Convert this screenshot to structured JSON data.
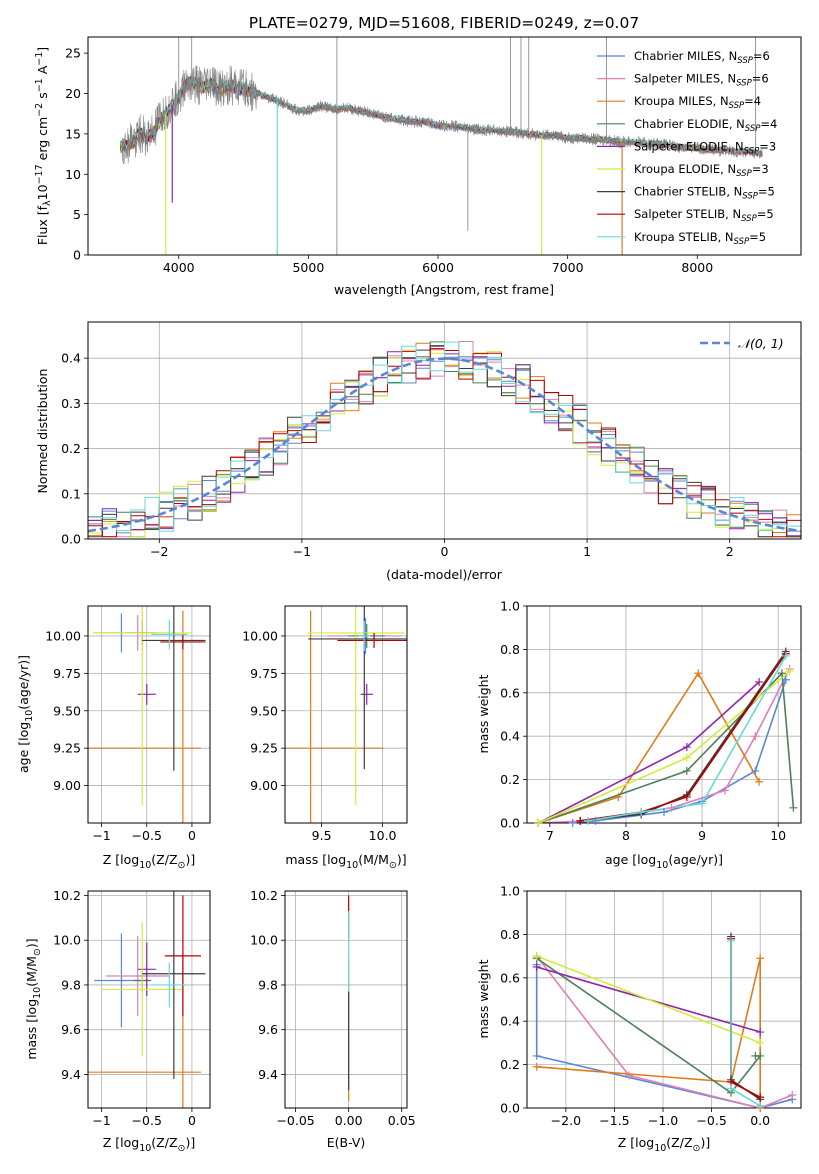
{
  "figure": {
    "title": "PLATE=0279, MJD=51608, FIBERID=0249, z=0.07"
  },
  "models": [
    {
      "name": "Chabrier MILES",
      "nssp": "6",
      "color": "#5a86d6"
    },
    {
      "name": "Salpeter MILES",
      "nssp": "6",
      "color": "#e07fb6"
    },
    {
      "name": "Kroupa MILES",
      "nssp": "4",
      "color": "#e07b1c"
    },
    {
      "name": "Chabrier ELODIE",
      "nssp": "4",
      "color": "#4e7f56"
    },
    {
      "name": "Salpeter ELODIE",
      "nssp": "3",
      "color": "#8e24aa"
    },
    {
      "name": "Kroupa ELODIE",
      "nssp": "3",
      "color": "#d2ec3d"
    },
    {
      "name": "Chabrier STELIB",
      "nssp": "5",
      "color": "#3d3d3d"
    },
    {
      "name": "Salpeter STELIB",
      "nssp": "5",
      "color": "#b30000"
    },
    {
      "name": "Kroupa STELIB",
      "nssp": "5",
      "color": "#6ad8d8"
    }
  ],
  "legend_nssp_label": "N",
  "legend_nssp_sub": "SSP",
  "chart_data": [
    {
      "id": "spectrum",
      "type": "line",
      "xlabel": "wavelength [Angstrom, rest frame]",
      "ylabel": "Flux [f",
      "ylabel_parts": [
        "Flux [f",
        "λ",
        "10",
        "−17",
        " erg cm",
        "−2",
        " s",
        "−1",
        " A",
        "−1",
        "]"
      ],
      "xlim": [
        3300,
        8800
      ],
      "ylim": [
        0,
        27
      ],
      "xticks": [
        4000,
        5000,
        6000,
        7000,
        8000
      ],
      "yticks": [
        0,
        5,
        10,
        15,
        20,
        25
      ],
      "data_color": "#808080",
      "data_points": [
        [
          3550,
          13.5
        ],
        [
          3600,
          13.8
        ],
        [
          3650,
          14.0
        ],
        [
          3700,
          15.2
        ],
        [
          3750,
          14.5
        ],
        [
          3800,
          15.0
        ],
        [
          3850,
          16.5
        ],
        [
          3900,
          17.5
        ],
        [
          3950,
          18.5
        ],
        [
          4000,
          19.5
        ],
        [
          4050,
          21.0
        ],
        [
          4100,
          21.5
        ],
        [
          4150,
          21.0
        ],
        [
          4200,
          20.8
        ],
        [
          4250,
          21.2
        ],
        [
          4300,
          20.5
        ],
        [
          4350,
          20.8
        ],
        [
          4400,
          21.0
        ],
        [
          4500,
          20.5
        ],
        [
          4600,
          20.0
        ],
        [
          4700,
          19.5
        ],
        [
          4800,
          18.8
        ],
        [
          4900,
          18.0
        ],
        [
          5000,
          17.8
        ],
        [
          5100,
          18.5
        ],
        [
          5200,
          18.0
        ],
        [
          5300,
          18.2
        ],
        [
          5400,
          17.8
        ],
        [
          5500,
          17.5
        ],
        [
          5600,
          17.0
        ],
        [
          5700,
          16.8
        ],
        [
          5800,
          16.5
        ],
        [
          5900,
          16.5
        ],
        [
          6000,
          16.0
        ],
        [
          6100,
          16.0
        ],
        [
          6200,
          15.8
        ],
        [
          6300,
          15.5
        ],
        [
          6400,
          15.5
        ],
        [
          6500,
          15.3
        ],
        [
          6600,
          15.2
        ],
        [
          6700,
          15.0
        ],
        [
          6800,
          14.8
        ],
        [
          6900,
          14.8
        ],
        [
          7000,
          14.5
        ],
        [
          7100,
          14.5
        ],
        [
          7200,
          14.3
        ],
        [
          7300,
          14.3
        ],
        [
          7400,
          14.0
        ],
        [
          7500,
          14.0
        ],
        [
          7600,
          13.8
        ],
        [
          7700,
          13.8
        ],
        [
          7800,
          13.5
        ],
        [
          7900,
          13.3
        ],
        [
          8000,
          13.3
        ],
        [
          8100,
          13.0
        ],
        [
          8200,
          13.0
        ],
        [
          8300,
          12.8
        ],
        [
          8400,
          12.8
        ],
        [
          8500,
          12.5
        ]
      ],
      "spikes": [
        [
          4000,
          27
        ],
        [
          4100,
          27
        ],
        [
          5220,
          0
        ],
        [
          5220,
          27
        ],
        [
          6230,
          3
        ],
        [
          6560,
          27
        ],
        [
          6640,
          27
        ],
        [
          6700,
          27
        ],
        [
          7300,
          27
        ],
        [
          8450,
          27
        ]
      ],
      "model_dips": [
        {
          "x": 3900,
          "model": 5,
          "y": 0
        },
        {
          "x": 3950,
          "model": 4,
          "y": 6.5
        },
        {
          "x": 4760,
          "model": 8,
          "y": 0
        },
        {
          "x": 6800,
          "model": 5,
          "y": 0
        },
        {
          "x": 7420,
          "model": 2,
          "y": 0
        }
      ]
    },
    {
      "id": "residuals",
      "type": "step",
      "xlabel": "(data-model)/error",
      "ylabel": "Normed distribution",
      "xlim": [
        -2.5,
        2.5
      ],
      "ylim": [
        0,
        0.48
      ],
      "xticks": [
        -2,
        -1,
        0,
        1,
        2
      ],
      "yticks": [
        0.0,
        0.1,
        0.2,
        0.3,
        0.4
      ],
      "grid": true,
      "legend_label": "𝒩(0, 1)",
      "legend_loc": "upper right",
      "normal_color": "#5a86d6",
      "bin_width": 0.1
    },
    {
      "id": "age_vs_Z",
      "type": "errorbar",
      "xlabel": "Z [log",
      "xlabel_parts": [
        "Z [log",
        "10",
        "(Z/Z",
        "⊙",
        ")]"
      ],
      "ylabel_parts": [
        "age  [log",
        "10",
        "(age/yr)]"
      ],
      "xlim": [
        -1.15,
        0.2
      ],
      "ylim": [
        8.75,
        10.2
      ],
      "xticks": [
        -1,
        -0.5,
        0
      ],
      "yticks": [
        9.0,
        9.25,
        9.5,
        9.75,
        10.0
      ],
      "grid": true,
      "points": [
        {
          "model": 0,
          "x": -0.78,
          "y": 10.02,
          "xerr": 0.3,
          "yerr": 0.13
        },
        {
          "model": 1,
          "x": -0.6,
          "y": 10.02,
          "xerr": 0.35,
          "yerr": 0.12
        },
        {
          "model": 2,
          "x": -0.6,
          "y": 9.25,
          "xerr": 0.7,
          "yerr": 0.0
        },
        {
          "model": 2,
          "x": -0.1,
          "y": 9.25,
          "xerr": 0.0,
          "yerr": 0.92
        },
        {
          "model": 3,
          "x": -0.55,
          "y": 10.02,
          "xerr": 0.15,
          "yerr": 0.08
        },
        {
          "model": 4,
          "x": -0.5,
          "y": 9.61,
          "xerr": 0.1,
          "yerr": 0.07
        },
        {
          "model": 5,
          "x": -0.55,
          "y": 10.02,
          "xerr": 0.55,
          "yerr": 1.15
        },
        {
          "model": 6,
          "x": -0.2,
          "y": 9.97,
          "xerr": 0.35,
          "yerr": 0.87
        },
        {
          "model": 7,
          "x": -0.1,
          "y": 9.96,
          "xerr": 0.25,
          "yerr": 0.05
        },
        {
          "model": 8,
          "x": -0.25,
          "y": 10.01,
          "xerr": 0.2,
          "yerr": 0.1
        }
      ]
    },
    {
      "id": "age_vs_mass",
      "type": "errorbar",
      "xlabel_parts": [
        "mass [log",
        "10",
        "(M/M",
        "⊙",
        ")]"
      ],
      "xlim": [
        9.2,
        10.2
      ],
      "ylim": [
        8.75,
        10.2
      ],
      "xticks": [
        9.5,
        10.0
      ],
      "yticks": [
        9.0,
        9.25,
        9.5,
        9.75,
        10.0
      ],
      "grid": true,
      "points": [
        {
          "model": 0,
          "x": 9.86,
          "y": 10.0,
          "xerr": 0.05,
          "yerr": 0.12
        },
        {
          "model": 1,
          "x": 9.85,
          "y": 10.0,
          "xerr": 0.3,
          "yerr": 0.12
        },
        {
          "model": 2,
          "x": 9.41,
          "y": 9.25,
          "xerr": 0.6,
          "yerr": 0.0
        },
        {
          "model": 2,
          "x": 9.41,
          "y": 9.25,
          "xerr": 0.0,
          "yerr": 0.92
        },
        {
          "model": 3,
          "x": 9.87,
          "y": 10.0,
          "xerr": 0.15,
          "yerr": 0.08
        },
        {
          "model": 4,
          "x": 9.87,
          "y": 9.61,
          "xerr": 0.05,
          "yerr": 0.07
        },
        {
          "model": 5,
          "x": 9.78,
          "y": 10.02,
          "xerr": 0.4,
          "yerr": 1.15
        },
        {
          "model": 6,
          "x": 9.85,
          "y": 9.98,
          "xerr": 0.46,
          "yerr": 0.87
        },
        {
          "model": 7,
          "x": 9.93,
          "y": 9.97,
          "xerr": 0.3,
          "yerr": 0.05
        },
        {
          "model": 8,
          "x": 9.85,
          "y": 10.0,
          "xerr": 0.05,
          "yerr": 0.1
        }
      ]
    },
    {
      "id": "massweight_vs_age",
      "type": "line",
      "xlabel_parts": [
        "age  [log",
        "10",
        "(age/yr)]"
      ],
      "ylabel": "mass weight",
      "xlim": [
        6.7,
        10.3
      ],
      "ylim": [
        0,
        1.0
      ],
      "xticks": [
        7,
        8,
        9,
        10
      ],
      "yticks": [
        0.0,
        0.2,
        0.4,
        0.6,
        0.8,
        1.0
      ],
      "grid": true,
      "series": [
        {
          "model": 0,
          "x": [
            7.3,
            7.6,
            8.5,
            9.0,
            9.7,
            10.1
          ],
          "y": [
            0.0,
            0.01,
            0.05,
            0.1,
            0.24,
            0.66
          ]
        },
        {
          "model": 1,
          "x": [
            6.85,
            7.5,
            8.6,
            9.3,
            9.7,
            10.15
          ],
          "y": [
            0.0,
            0.01,
            0.07,
            0.15,
            0.4,
            0.71
          ]
        },
        {
          "model": 2,
          "x": [
            6.85,
            7.9,
            8.95,
            9.75
          ],
          "y": [
            0.0,
            0.12,
            0.69,
            0.19
          ]
        },
        {
          "model": 3,
          "x": [
            6.85,
            8.8,
            10.05,
            10.2
          ],
          "y": [
            0.0,
            0.24,
            0.69,
            0.07
          ]
        },
        {
          "model": 4,
          "x": [
            6.85,
            8.8,
            9.75
          ],
          "y": [
            0.0,
            0.35,
            0.65
          ]
        },
        {
          "model": 5,
          "x": [
            6.85,
            8.8,
            10.15
          ],
          "y": [
            0.0,
            0.3,
            0.7
          ]
        },
        {
          "model": 6,
          "x": [
            7.4,
            8.2,
            8.8,
            10.1
          ],
          "y": [
            0.01,
            0.04,
            0.13,
            0.79
          ]
        },
        {
          "model": 7,
          "x": [
            7.4,
            8.2,
            8.8,
            10.1
          ],
          "y": [
            0.01,
            0.05,
            0.12,
            0.78
          ]
        },
        {
          "model": 8,
          "x": [
            7.5,
            8.2,
            9.0,
            10.1
          ],
          "y": [
            0.01,
            0.05,
            0.09,
            0.77
          ]
        }
      ]
    },
    {
      "id": "mass_vs_Z",
      "type": "errorbar",
      "xlabel_parts": [
        "Z [log",
        "10",
        "(Z/Z",
        "⊙",
        ")]"
      ],
      "ylabel_parts": [
        "mass [log",
        "10",
        "(M/M",
        "⊙",
        ")]"
      ],
      "xlim": [
        -1.15,
        0.2
      ],
      "ylim": [
        9.25,
        10.22
      ],
      "xticks": [
        -1,
        -0.5,
        0
      ],
      "yticks": [
        9.4,
        9.6,
        9.8,
        10.0,
        10.2
      ],
      "grid": true,
      "points": [
        {
          "model": 0,
          "x": -0.78,
          "y": 9.82,
          "xerr": 0.3,
          "yerr": 0.21
        },
        {
          "model": 1,
          "x": -0.6,
          "y": 9.84,
          "xerr": 0.35,
          "yerr": 0.18
        },
        {
          "model": 2,
          "x": -0.6,
          "y": 9.41,
          "xerr": 0.7,
          "yerr": 0.0
        },
        {
          "model": 2,
          "x": -0.1,
          "y": 9.41,
          "xerr": 0.0,
          "yerr": 0.53
        },
        {
          "model": 3,
          "x": -0.55,
          "y": 9.82,
          "xerr": 0.1,
          "yerr": 0.05
        },
        {
          "model": 4,
          "x": -0.5,
          "y": 9.87,
          "xerr": 0.1,
          "yerr": 0.12
        },
        {
          "model": 5,
          "x": -0.55,
          "y": 9.78,
          "xerr": 0.45,
          "yerr": 0.3
        },
        {
          "model": 6,
          "x": -0.2,
          "y": 9.85,
          "xerr": 0.35,
          "yerr": 0.47
        },
        {
          "model": 7,
          "x": -0.1,
          "y": 9.93,
          "xerr": 0.2,
          "yerr": 0.27
        },
        {
          "model": 8,
          "x": -0.25,
          "y": 9.8,
          "xerr": 0.2,
          "yerr": 0.1
        }
      ]
    },
    {
      "id": "mass_vs_EBV",
      "type": "errorbar",
      "xlabel": "E(B-V)",
      "xlim": [
        -0.06,
        0.055
      ],
      "ylim": [
        9.25,
        10.22
      ],
      "xticks": [
        -0.05,
        0.0,
        0.05
      ],
      "yticks": [
        9.4,
        9.6,
        9.8,
        10.0,
        10.2
      ],
      "grid": true,
      "points": [
        {
          "model": 2,
          "x": 0.0,
          "y": 9.6,
          "xerr": 0.0,
          "yerr": 0.32
        },
        {
          "model": 7,
          "x": 0.0,
          "y": 10.1,
          "xerr": 0.0,
          "yerr": 0.1
        },
        {
          "model": 8,
          "x": 0.0,
          "y": 9.95,
          "xerr": 0.0,
          "yerr": 0.18
        },
        {
          "model": 6,
          "x": 0.0,
          "y": 9.55,
          "xerr": 0.0,
          "yerr": 0.22
        }
      ]
    },
    {
      "id": "massweight_vs_Z",
      "type": "line",
      "xlabel_parts": [
        "Z [log",
        "10",
        "(Z/Z",
        "⊙",
        ")]"
      ],
      "ylabel": "mass weight",
      "xlim": [
        -2.4,
        0.42
      ],
      "ylim": [
        0,
        1.0
      ],
      "xticks": [
        -2.0,
        -1.5,
        -1.0,
        -0.5,
        0.0
      ],
      "yticks": [
        0.0,
        0.2,
        0.4,
        0.6,
        0.8,
        1.0
      ],
      "grid": true,
      "series": [
        {
          "model": 0,
          "x": [
            -2.3,
            -2.3,
            0.0,
            0.33
          ],
          "y": [
            0.66,
            0.24,
            0.0,
            0.04
          ]
        },
        {
          "model": 1,
          "x": [
            -2.3,
            -1.35,
            0.0,
            0.33
          ],
          "y": [
            0.7,
            0.15,
            0.0,
            0.06
          ]
        },
        {
          "model": 2,
          "x": [
            -2.3,
            -0.3,
            0.0,
            0.0
          ],
          "y": [
            0.19,
            0.12,
            0.69,
            0.0
          ]
        },
        {
          "model": 3,
          "x": [
            -2.3,
            -0.3,
            0.0,
            -0.05
          ],
          "y": [
            0.69,
            0.07,
            0.24,
            0.24
          ]
        },
        {
          "model": 4,
          "x": [
            -2.3,
            0.0
          ],
          "y": [
            0.65,
            0.35
          ]
        },
        {
          "model": 5,
          "x": [
            -2.3,
            0.0
          ],
          "y": [
            0.7,
            0.3
          ]
        },
        {
          "model": 6,
          "x": [
            -0.3,
            -0.3,
            0.0
          ],
          "y": [
            0.79,
            0.13,
            0.04
          ]
        },
        {
          "model": 7,
          "x": [
            -0.3,
            -0.3,
            0.0
          ],
          "y": [
            0.78,
            0.12,
            0.05
          ]
        },
        {
          "model": 8,
          "x": [
            -0.3,
            -0.3,
            0.0
          ],
          "y": [
            0.77,
            0.09,
            0.01
          ]
        }
      ]
    }
  ]
}
